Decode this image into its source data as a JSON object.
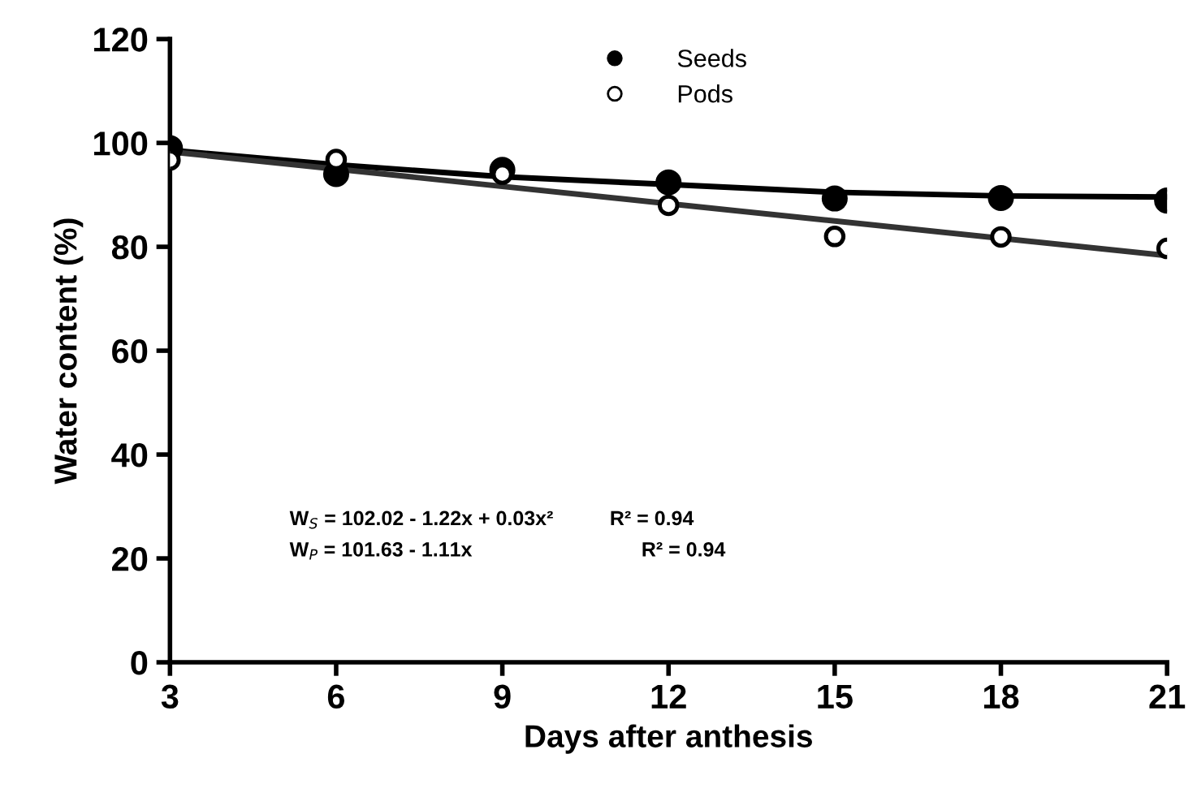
{
  "chart_data": {
    "type": "scatter",
    "xlabel": "Days after anthesis",
    "ylabel": "Water content (%)",
    "xlim": [
      3,
      21
    ],
    "xticks": [
      3,
      6,
      9,
      12,
      15,
      18,
      21
    ],
    "ylim": [
      0,
      120
    ],
    "yticks": [
      0,
      20,
      40,
      60,
      80,
      100,
      120
    ],
    "grid": false,
    "legend": "top",
    "line_style": "solid",
    "series": [
      {
        "type": "line",
        "marker": "none",
        "color": "#000000",
        "x": [
          3,
          6,
          9,
          12,
          15,
          18,
          21
        ],
        "values": [
          98.6,
          95.8,
          93.5,
          92.0,
          90.5,
          89.8,
          89.6
        ]
      },
      {
        "type": "line",
        "marker": "none",
        "color": "#333333",
        "x": [
          3,
          21
        ],
        "values": [
          98.3,
          78.3
        ]
      },
      {
        "name": "Seeds",
        "marker": "circle",
        "color": "#000000",
        "x": [
          3,
          6,
          9,
          12,
          15,
          18,
          21
        ],
        "values": [
          99,
          94,
          94.8,
          92.4,
          89.3,
          89.4,
          88.9
        ]
      },
      {
        "name": "Pods",
        "marker": "circle",
        "color": "#ffffff",
        "x": [
          3,
          6,
          9,
          12,
          15,
          18,
          21
        ],
        "values": [
          96.7,
          96.8,
          94,
          88,
          82,
          81.9,
          79.7
        ]
      }
    ],
    "annotations": [
      "W$_{S}$ = 102.02 - 1.22x + 0.03x²          R² = 0.94",
      "W$_{P}$ = 101.63 - 1.11x                              R² = 0.94"
    ]
  }
}
